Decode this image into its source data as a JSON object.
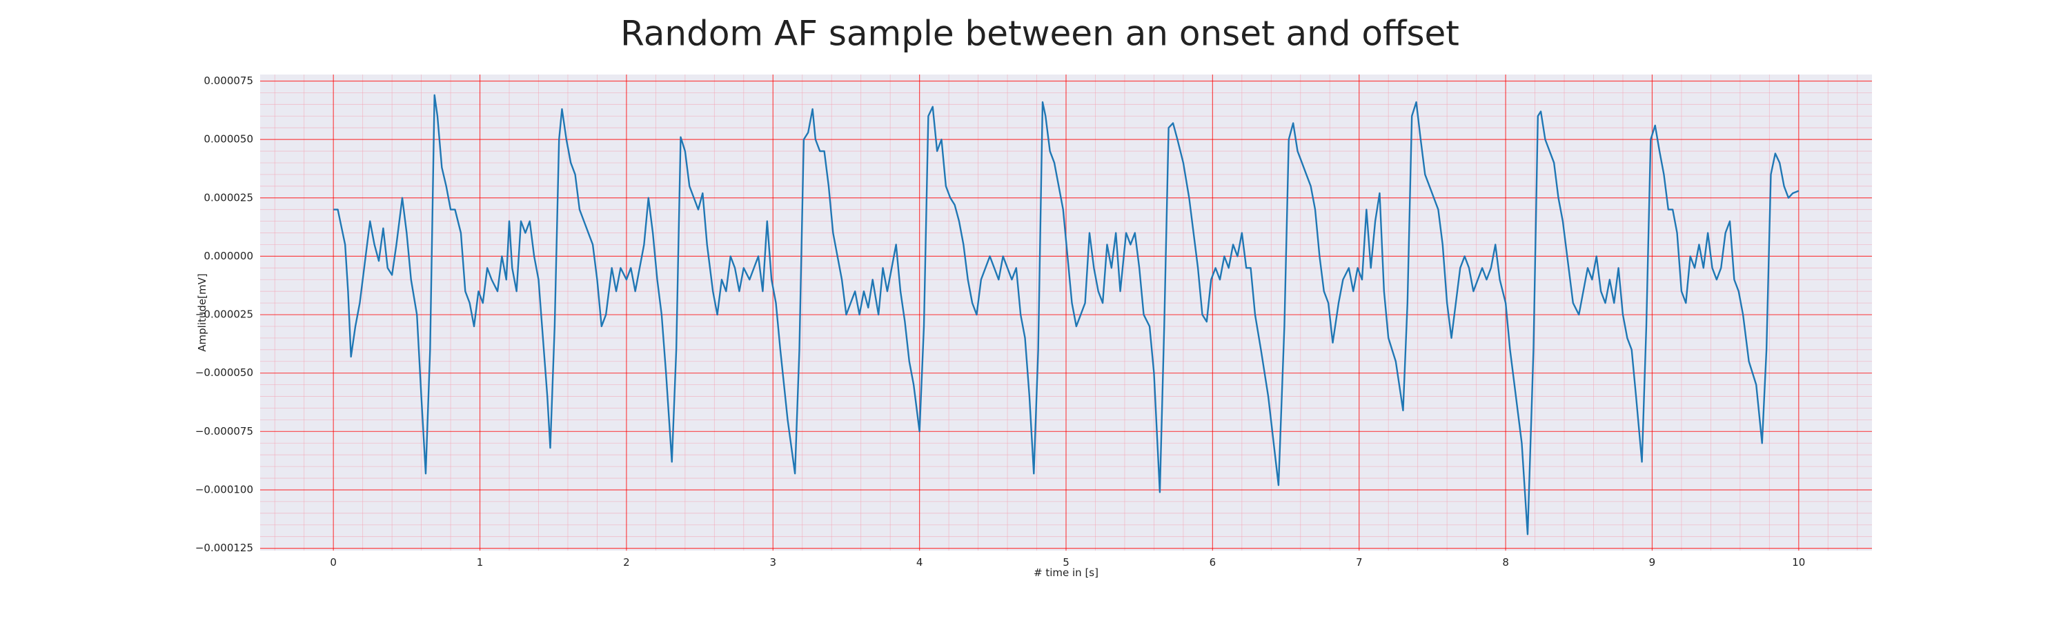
{
  "chart_data": {
    "type": "line",
    "title": "Random AF sample between an onset and offset",
    "xlabel": "# time in [s]",
    "ylabel": "Amplitude[mV]",
    "color": "#1f77b4",
    "grid": true,
    "minor_grid": true,
    "xlim": [
      -0.5,
      10.5
    ],
    "ylim": [
      -0.000126,
      7.78e-05
    ],
    "xticks": [
      0,
      1,
      2,
      3,
      4,
      5,
      6,
      7,
      8,
      9,
      10
    ],
    "yticks": [
      {
        "value": -0.000125,
        "label": "−0.000125"
      },
      {
        "value": -0.0001,
        "label": "−0.000100"
      },
      {
        "value": -7.5e-05,
        "label": "−0.000075"
      },
      {
        "value": -5e-05,
        "label": "−0.000050"
      },
      {
        "value": -2.5e-05,
        "label": "−0.000025"
      },
      {
        "value": 0,
        "label": "0.000000"
      },
      {
        "value": 2.5e-05,
        "label": "0.000025"
      },
      {
        "value": 5e-05,
        "label": "0.000050"
      },
      {
        "value": 7.5e-05,
        "label": "0.000075"
      }
    ],
    "x": [
      0,
      0.03,
      0.08,
      0.1,
      0.12,
      0.15,
      0.18,
      0.22,
      0.25,
      0.28,
      0.31,
      0.34,
      0.37,
      0.4,
      0.43,
      0.47,
      0.5,
      0.53,
      0.57,
      0.6,
      0.63,
      0.66,
      0.69,
      0.71,
      0.74,
      0.77,
      0.8,
      0.83,
      0.87,
      0.9,
      0.93,
      0.96,
      0.99,
      1.02,
      1.05,
      1.08,
      1.12,
      1.15,
      1.18,
      1.2,
      1.22,
      1.25,
      1.28,
      1.31,
      1.34,
      1.37,
      1.4,
      1.43,
      1.46,
      1.48,
      1.51,
      1.54,
      1.56,
      1.59,
      1.62,
      1.65,
      1.68,
      1.71,
      1.74,
      1.77,
      1.8,
      1.83,
      1.86,
      1.9,
      1.93,
      1.96,
      2.0,
      2.03,
      2.06,
      2.09,
      2.12,
      2.15,
      2.18,
      2.21,
      2.24,
      2.27,
      2.31,
      2.34,
      2.37,
      2.4,
      2.43,
      2.46,
      2.49,
      2.52,
      2.55,
      2.59,
      2.62,
      2.65,
      2.68,
      2.71,
      2.74,
      2.77,
      2.8,
      2.84,
      2.87,
      2.9,
      2.93,
      2.96,
      2.99,
      3.02,
      3.05,
      3.1,
      3.15,
      3.18,
      3.21,
      3.24,
      3.27,
      3.29,
      3.32,
      3.35,
      3.38,
      3.41,
      3.44,
      3.47,
      3.5,
      3.53,
      3.56,
      3.59,
      3.62,
      3.65,
      3.68,
      3.72,
      3.75,
      3.78,
      3.81,
      3.84,
      3.87,
      3.9,
      3.93,
      3.96,
      4.0,
      4.03,
      4.06,
      4.09,
      4.12,
      4.15,
      4.18,
      4.21,
      4.24,
      4.27,
      4.3,
      4.33,
      4.36,
      4.39,
      4.42,
      4.45,
      4.48,
      4.51,
      4.54,
      4.57,
      4.6,
      4.63,
      4.66,
      4.69,
      4.72,
      4.75,
      4.78,
      4.81,
      4.84,
      4.86,
      4.89,
      4.92,
      4.95,
      4.98,
      5.01,
      5.04,
      5.07,
      5.1,
      5.13,
      5.16,
      5.19,
      5.22,
      5.25,
      5.28,
      5.31,
      5.34,
      5.37,
      5.41,
      5.44,
      5.47,
      5.5,
      5.53,
      5.57,
      5.6,
      5.64,
      5.67,
      5.7,
      5.73,
      5.76,
      5.8,
      5.84,
      5.87,
      5.9,
      5.93,
      5.96,
      5.99,
      6.02,
      6.05,
      6.08,
      6.11,
      6.14,
      6.17,
      6.2,
      6.23,
      6.26,
      6.29,
      6.33,
      6.38,
      6.45,
      6.49,
      6.52,
      6.55,
      6.58,
      6.61,
      6.64,
      6.67,
      6.7,
      6.73,
      6.76,
      6.79,
      6.82,
      6.86,
      6.89,
      6.93,
      6.96,
      6.99,
      7.02,
      7.05,
      7.08,
      7.11,
      7.14,
      7.17,
      7.2,
      7.25,
      7.3,
      7.33,
      7.36,
      7.39,
      7.42,
      7.45,
      7.48,
      7.51,
      7.54,
      7.57,
      7.6,
      7.63,
      7.66,
      7.69,
      7.72,
      7.75,
      7.78,
      7.81,
      7.84,
      7.87,
      7.9,
      7.93,
      7.96,
      8.0,
      8.03,
      8.07,
      8.11,
      8.15,
      8.19,
      8.22,
      8.24,
      8.27,
      8.3,
      8.33,
      8.36,
      8.39,
      8.42,
      8.46,
      8.5,
      8.53,
      8.56,
      8.59,
      8.62,
      8.65,
      8.68,
      8.71,
      8.74,
      8.77,
      8.8,
      8.83,
      8.86,
      8.89,
      8.93,
      8.96,
      8.99,
      9.02,
      9.05,
      9.08,
      9.11,
      9.14,
      9.17,
      9.2,
      9.23,
      9.26,
      9.29,
      9.32,
      9.35,
      9.38,
      9.41,
      9.44,
      9.47,
      9.5,
      9.53,
      9.56,
      9.59,
      9.62,
      9.66,
      9.71,
      9.75,
      9.78,
      9.81,
      9.84,
      9.87,
      9.9,
      9.93,
      9.96,
      10.0
    ],
    "values": [
      2e-05,
      2e-05,
      5e-06,
      -1.5e-05,
      -4.3e-05,
      -3e-05,
      -2e-05,
      0,
      1.5e-05,
      5e-06,
      -2e-06,
      1.2e-05,
      -5e-06,
      -8e-06,
      5e-06,
      2.5e-05,
      1e-05,
      -1e-05,
      -2.5e-05,
      -6e-05,
      -9.3e-05,
      -4e-05,
      6.9e-05,
      6e-05,
      3.8e-05,
      3e-05,
      2e-05,
      2e-05,
      1e-05,
      -1.5e-05,
      -2e-05,
      -3e-05,
      -1.5e-05,
      -2e-05,
      -5e-06,
      -1e-05,
      -1.5e-05,
      0,
      -1e-05,
      1.5e-05,
      -5e-06,
      -1.5e-05,
      1.5e-05,
      1e-05,
      1.5e-05,
      0,
      -1e-05,
      -3.5e-05,
      -6e-05,
      -8.2e-05,
      -3e-05,
      5e-05,
      6.3e-05,
      5e-05,
      4e-05,
      3.5e-05,
      2e-05,
      1.5e-05,
      1e-05,
      5e-06,
      -1e-05,
      -3e-05,
      -2.5e-05,
      -5e-06,
      -1.5e-05,
      -5e-06,
      -1e-05,
      -5e-06,
      -1.5e-05,
      -5e-06,
      5e-06,
      2.5e-05,
      1e-05,
      -1e-05,
      -2.5e-05,
      -5e-05,
      -8.8e-05,
      -4e-05,
      5.1e-05,
      4.5e-05,
      3e-05,
      2.5e-05,
      2e-05,
      2.7e-05,
      5e-06,
      -1.5e-05,
      -2.5e-05,
      -1e-05,
      -1.5e-05,
      0,
      -5e-06,
      -1.5e-05,
      -5e-06,
      -1e-05,
      -5e-06,
      0,
      -1.5e-05,
      1.5e-05,
      -1e-05,
      -2e-05,
      -4e-05,
      -7e-05,
      -9.3e-05,
      -4e-05,
      5e-05,
      5.3e-05,
      6.3e-05,
      5e-05,
      4.5e-05,
      4.5e-05,
      3e-05,
      1e-05,
      0,
      -1e-05,
      -2.5e-05,
      -2e-05,
      -1.5e-05,
      -2.5e-05,
      -1.5e-05,
      -2.2e-05,
      -1e-05,
      -2.5e-05,
      -5e-06,
      -1.5e-05,
      -5e-06,
      5e-06,
      -1.5e-05,
      -2.8e-05,
      -4.5e-05,
      -5.5e-05,
      -7.5e-05,
      -3e-05,
      6e-05,
      6.4e-05,
      4.5e-05,
      5e-05,
      3e-05,
      2.5e-05,
      2.2e-05,
      1.5e-05,
      5e-06,
      -1e-05,
      -2e-05,
      -2.5e-05,
      -1e-05,
      -5e-06,
      0,
      -5e-06,
      -1e-05,
      0,
      -5e-06,
      -1e-05,
      -5e-06,
      -2.5e-05,
      -3.5e-05,
      -6e-05,
      -9.3e-05,
      -4e-05,
      6.6e-05,
      6e-05,
      4.5e-05,
      4e-05,
      3e-05,
      2e-05,
      0,
      -2e-05,
      -3e-05,
      -2.5e-05,
      -2e-05,
      1e-05,
      -5e-06,
      -1.5e-05,
      -2e-05,
      5e-06,
      -5e-06,
      1e-05,
      -1.5e-05,
      1e-05,
      5e-06,
      1e-05,
      -5e-06,
      -2.5e-05,
      -3e-05,
      -5e-05,
      -0.000101,
      -3e-05,
      5.5e-05,
      5.7e-05,
      5e-05,
      4e-05,
      2.5e-05,
      1e-05,
      -5e-06,
      -2.5e-05,
      -2.8e-05,
      -1e-05,
      -5e-06,
      -1e-05,
      0,
      -5e-06,
      5e-06,
      0,
      1e-05,
      -5e-06,
      -5e-06,
      -2.5e-05,
      -4e-05,
      -6e-05,
      -9.8e-05,
      -3e-05,
      5e-05,
      5.7e-05,
      4.5e-05,
      4e-05,
      3.5e-05,
      3e-05,
      2e-05,
      0,
      -1.5e-05,
      -2e-05,
      -3.7e-05,
      -2e-05,
      -1e-05,
      -5e-06,
      -1.5e-05,
      -5e-06,
      -1e-05,
      2e-05,
      -5e-06,
      1.5e-05,
      2.7e-05,
      -1.5e-05,
      -3.5e-05,
      -4.5e-05,
      -6.6e-05,
      -2e-05,
      6e-05,
      6.6e-05,
      5e-05,
      3.5e-05,
      3e-05,
      2.5e-05,
      2e-05,
      5e-06,
      -2e-05,
      -3.5e-05,
      -2e-05,
      -5e-06,
      0,
      -5e-06,
      -1.5e-05,
      -1e-05,
      -5e-06,
      -1e-05,
      -5e-06,
      5e-06,
      -1e-05,
      -2e-05,
      -4e-05,
      -6e-05,
      -8e-05,
      -0.000119,
      -4e-05,
      6e-05,
      6.2e-05,
      5e-05,
      4.5e-05,
      4e-05,
      2.5e-05,
      1.5e-05,
      0,
      -2e-05,
      -2.5e-05,
      -1.5e-05,
      -5e-06,
      -1e-05,
      0,
      -1.5e-05,
      -2e-05,
      -1e-05,
      -2e-05,
      -5e-06,
      -2.5e-05,
      -3.5e-05,
      -4e-05,
      -6e-05,
      -8.8e-05,
      -3e-05,
      5e-05,
      5.6e-05,
      4.5e-05,
      3.5e-05,
      2e-05,
      2e-05,
      1e-05,
      -1.5e-05,
      -2e-05,
      0,
      -5e-06,
      5e-06,
      -5e-06,
      1e-05,
      -5e-06,
      -1e-05,
      -5e-06,
      1e-05,
      1.5e-05,
      -1e-05,
      -1.5e-05,
      -2.5e-05,
      -4.5e-05,
      -5.5e-05,
      -8e-05,
      -4e-05,
      3.5e-05,
      4.4e-05,
      4e-05,
      3e-05,
      2.5e-05,
      2.7e-05,
      2.8e-05
    ]
  }
}
